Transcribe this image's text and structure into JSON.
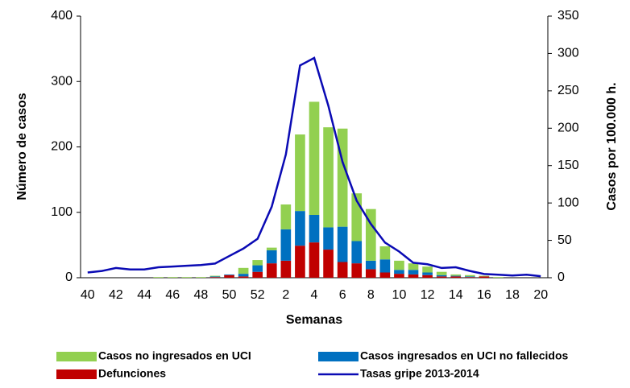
{
  "chart_data": {
    "type": "bar",
    "stacked": true,
    "xlabel": "Semanas",
    "ylabel": "Número de casos",
    "y2label": "Casos por 100.000 h.",
    "categories": [
      "40",
      null,
      "42",
      null,
      "44",
      null,
      "46",
      null,
      "48",
      null,
      "50",
      null,
      "52",
      null,
      "2",
      null,
      "4",
      null,
      "6",
      null,
      "8",
      null,
      "10",
      null,
      "12",
      null,
      "14",
      null,
      "16",
      null,
      "18",
      null,
      "20"
    ],
    "series": [
      {
        "name": "Defunciones",
        "color": "#c00000",
        "values": [
          0,
          0,
          0,
          0,
          0,
          0,
          0,
          0,
          0,
          1,
          4,
          2,
          9,
          22,
          26,
          49,
          54,
          43,
          24,
          22,
          13,
          8,
          6,
          5,
          4,
          2,
          2,
          1,
          2,
          0,
          0,
          0,
          0
        ]
      },
      {
        "name": "Casos ingresados en UCI no fallecidos",
        "color": "#0070c0",
        "values": [
          0,
          0,
          0,
          0,
          0,
          0,
          0,
          0,
          0,
          1,
          1,
          4,
          10,
          20,
          48,
          53,
          42,
          34,
          54,
          34,
          13,
          20,
          6,
          7,
          4,
          2,
          1,
          1,
          0,
          0,
          0,
          0,
          0
        ]
      },
      {
        "name": "Casos no ingresados en UCI",
        "color": "#92d050",
        "values": [
          0,
          0,
          0,
          0,
          0,
          1,
          1,
          1,
          1,
          1,
          0,
          9,
          8,
          4,
          38,
          117,
          173,
          153,
          150,
          73,
          79,
          20,
          14,
          10,
          9,
          5,
          2,
          2,
          1,
          1,
          0,
          0,
          0
        ]
      },
      {
        "name": "Tasas gripe 2013-2014",
        "color": "#0a0ab4",
        "type": "line",
        "axis": "y2",
        "values": [
          7,
          9,
          13,
          11,
          11,
          14,
          15,
          16,
          17,
          19,
          29,
          39,
          52,
          95,
          165,
          284,
          294,
          230,
          155,
          103,
          72,
          47,
          35,
          20,
          18,
          13,
          14,
          9,
          5,
          4,
          3,
          4,
          2
        ]
      }
    ],
    "ylim": [
      0,
      400
    ],
    "yticks": [
      0,
      100,
      200,
      300,
      400
    ],
    "y2lim": [
      0,
      350
    ],
    "y2ticks": [
      0,
      50,
      100,
      150,
      200,
      250,
      300,
      350
    ],
    "legend": "bottom"
  }
}
